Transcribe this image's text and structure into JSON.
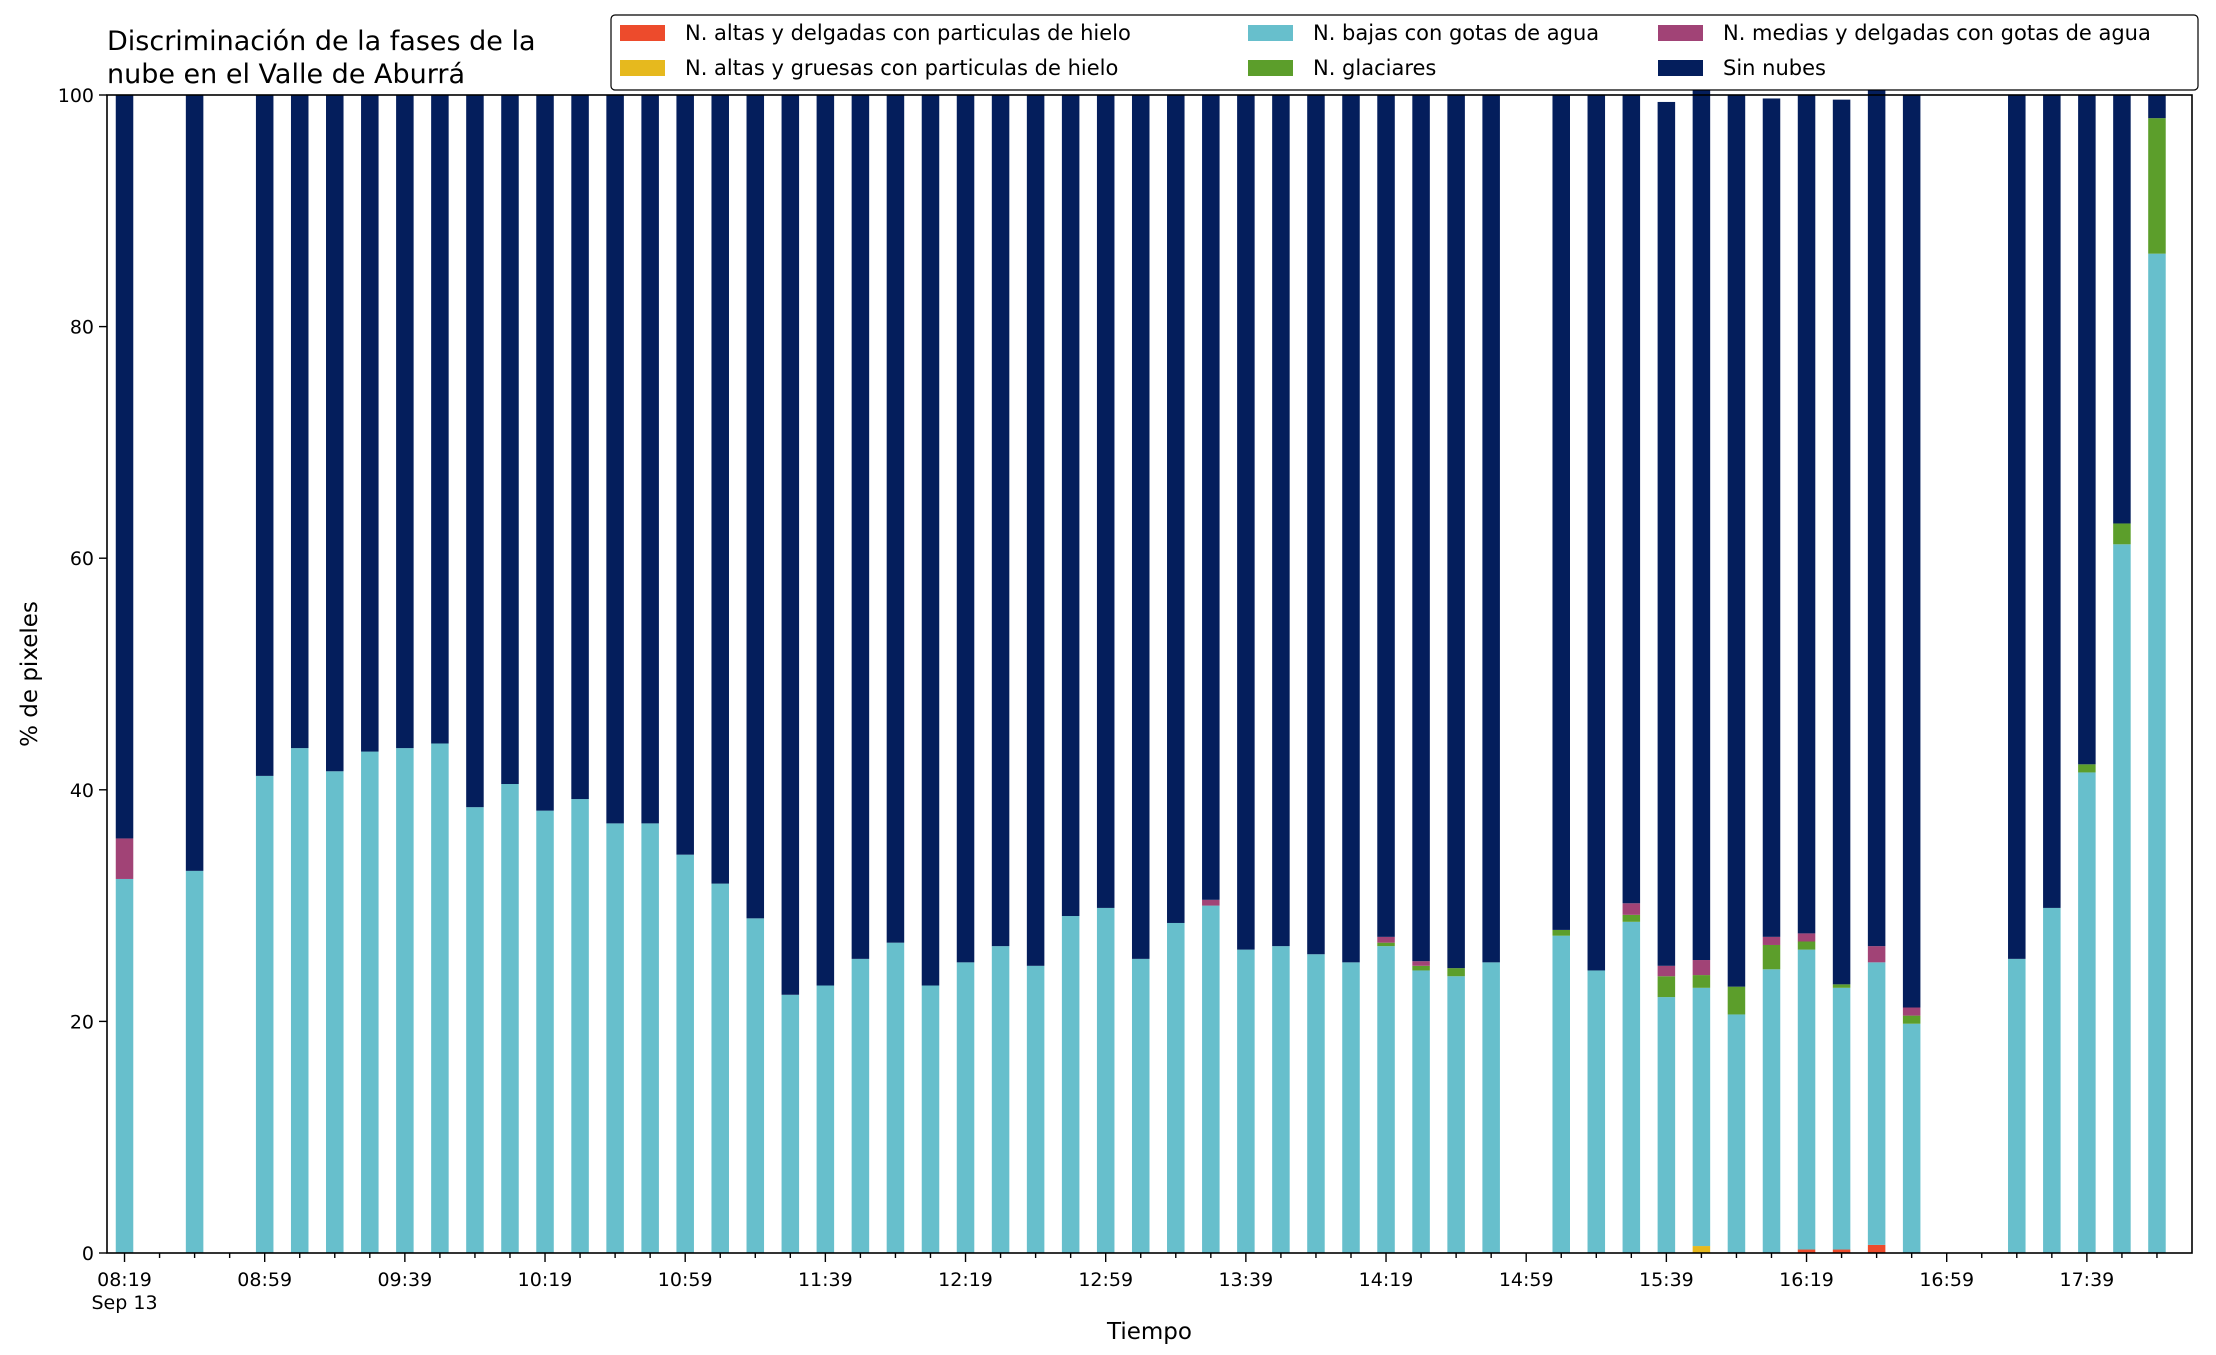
{
  "chart_data": {
    "type": "bar",
    "stacked": true,
    "title_lines": [
      "Discriminación de la fases de la",
      "nube en el Valle de Aburrá"
    ],
    "xlabel": "Tiempo",
    "ylabel": "% de pixeles",
    "ylim": [
      0,
      100
    ],
    "yticks": [
      "0",
      "20",
      "40",
      "60",
      "80",
      "100"
    ],
    "xtick_labels": [
      "08:19",
      "08:59",
      "09:39",
      "10:19",
      "10:59",
      "11:39",
      "12:19",
      "12:59",
      "13:39",
      "14:19",
      "14:59",
      "15:39",
      "16:19",
      "16:59",
      "17:39"
    ],
    "xtick_sublabel": "Sep 13",
    "grid": false,
    "legend_position": "top-right",
    "x_slots": 59,
    "series": [
      {
        "name": "N. altas y delgadas con particulas de hielo",
        "color": "#ed4b2c",
        "values": [
          0,
          0,
          0,
          0,
          0,
          0,
          0,
          0,
          0,
          0,
          0,
          0,
          0,
          0,
          0,
          0,
          0,
          0,
          0,
          0,
          0,
          0,
          0,
          0,
          0,
          0,
          0,
          0,
          0,
          0,
          0,
          0,
          0,
          0,
          0,
          0,
          0,
          0,
          0,
          0,
          0,
          0,
          0,
          0,
          0,
          0,
          0,
          0,
          0.3,
          0.3,
          0.7,
          0,
          0,
          0,
          0,
          0,
          0,
          0,
          0
        ]
      },
      {
        "name": "N. altas y gruesas con particulas de hielo",
        "color": "#e6b91e",
        "values": [
          0,
          0,
          0,
          0,
          0,
          0,
          0,
          0,
          0,
          0,
          0,
          0,
          0,
          0,
          0,
          0,
          0,
          0,
          0,
          0,
          0,
          0,
          0,
          0,
          0,
          0,
          0,
          0,
          0,
          0,
          0,
          0,
          0,
          0,
          0,
          0,
          0,
          0,
          0,
          0,
          0,
          0,
          0,
          0,
          0,
          0.6,
          0,
          0,
          0,
          0,
          0,
          0,
          0,
          0,
          0,
          0,
          0,
          0,
          0
        ]
      },
      {
        "name": "N. bajas con gotas de agua",
        "color": "#67bfcc",
        "values": [
          32.3,
          0,
          33.0,
          0,
          41.2,
          43.6,
          41.6,
          43.3,
          43.6,
          44.0,
          38.5,
          40.5,
          38.2,
          39.2,
          37.1,
          37.1,
          34.4,
          31.9,
          28.9,
          22.3,
          23.1,
          25.4,
          26.8,
          23.1,
          25.1,
          26.5,
          24.8,
          29.1,
          29.8,
          25.4,
          28.5,
          30.0,
          26.2,
          26.5,
          25.8,
          25.1,
          26.5,
          24.4,
          23.9,
          25.1,
          0,
          27.4,
          24.4,
          28.6,
          22.1,
          22.3,
          20.6,
          24.5,
          25.9,
          22.6,
          24.4,
          19.8,
          0,
          0,
          25.4,
          29.8,
          41.5,
          61.2,
          86.3
        ]
      },
      {
        "name": "N. glaciares",
        "color": "#5c9e2b",
        "values": [
          0,
          0,
          0,
          0,
          0,
          0,
          0,
          0,
          0,
          0,
          0,
          0,
          0,
          0,
          0,
          0,
          0,
          0,
          0,
          0,
          0,
          0,
          0,
          0,
          0,
          0,
          0,
          0,
          0,
          0,
          0,
          0,
          0,
          0,
          0,
          0,
          0.3,
          0.4,
          0.7,
          0,
          0,
          0.5,
          0,
          0.6,
          1.8,
          1.1,
          2.4,
          2.1,
          0.7,
          0.3,
          0,
          0.7,
          0,
          0,
          0,
          0,
          0.7,
          1.8,
          11.7
        ]
      },
      {
        "name": "N. medias y delgadas con gotas de agua",
        "color": "#a14376",
        "values": [
          3.5,
          0,
          0,
          0,
          0,
          0,
          0,
          0,
          0,
          0,
          0,
          0,
          0,
          0,
          0,
          0,
          0,
          0,
          0,
          0,
          0,
          0,
          0,
          0,
          0,
          0,
          0,
          0,
          0,
          0,
          0,
          0.5,
          0,
          0,
          0,
          0,
          0.5,
          0.4,
          0,
          0,
          0,
          0,
          0,
          1.0,
          0.9,
          1.3,
          0,
          0.7,
          0.7,
          0,
          1.4,
          0.7,
          0,
          0,
          0,
          0,
          0,
          0,
          0
        ]
      },
      {
        "name": "Sin nubes",
        "color": "#041e5c",
        "values": [
          64.2,
          0,
          67.0,
          0,
          58.8,
          56.4,
          58.4,
          56.7,
          56.4,
          56.0,
          61.5,
          59.5,
          61.8,
          60.8,
          62.9,
          62.9,
          65.6,
          68.1,
          71.1,
          77.7,
          76.9,
          74.6,
          73.2,
          76.9,
          74.9,
          73.5,
          75.2,
          70.9,
          70.2,
          74.6,
          71.5,
          69.5,
          73.8,
          73.5,
          74.2,
          74.9,
          72.7,
          74.8,
          75.4,
          74.9,
          0,
          72.1,
          75.6,
          69.8,
          74.6,
          75.3,
          77.0,
          72.4,
          72.4,
          76.4,
          74.9,
          78.8,
          0,
          0,
          74.6,
          70.2,
          57.8,
          37.0,
          2.0
        ]
      }
    ]
  }
}
